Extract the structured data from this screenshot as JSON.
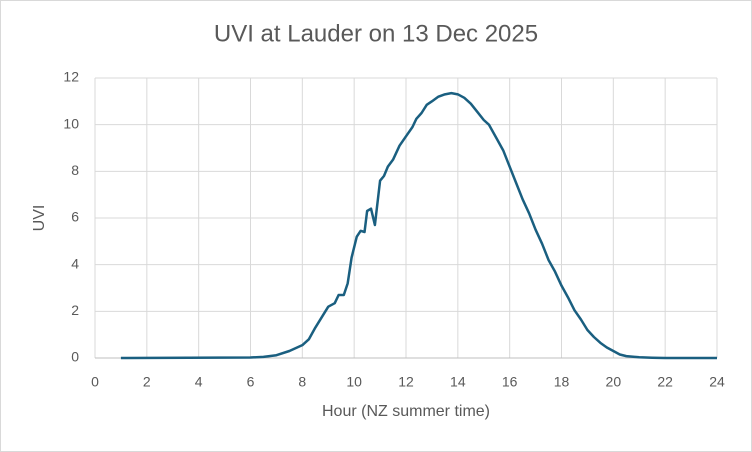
{
  "chart_data": {
    "type": "line",
    "title": "UVI at Lauder on 13 Dec 2025",
    "x_label": "Hour (NZ summer time)",
    "y_label": "UVI",
    "x": [
      1.0,
      6.0,
      6.5,
      7.0,
      7.5,
      8.0,
      8.25,
      8.5,
      8.75,
      9.0,
      9.25,
      9.4,
      9.6,
      9.75,
      9.9,
      10.1,
      10.25,
      10.4,
      10.5,
      10.65,
      10.8,
      11.0,
      11.15,
      11.3,
      11.5,
      11.75,
      12.0,
      12.25,
      12.4,
      12.6,
      12.8,
      13.0,
      13.25,
      13.5,
      13.75,
      14.0,
      14.25,
      14.5,
      14.75,
      15.0,
      15.2,
      15.5,
      15.75,
      16.0,
      16.25,
      16.5,
      16.75,
      17.0,
      17.25,
      17.5,
      17.75,
      18.0,
      18.25,
      18.5,
      18.75,
      19.0,
      19.25,
      19.5,
      19.75,
      20.0,
      20.25,
      20.5,
      21.0,
      21.5,
      22.0,
      24.0
    ],
    "series": [
      {
        "name": "UVI",
        "color": "#1a5f80",
        "values": [
          0,
          0.02,
          0.05,
          0.12,
          0.3,
          0.55,
          0.8,
          1.3,
          1.75,
          2.2,
          2.35,
          2.7,
          2.7,
          3.2,
          4.3,
          5.2,
          5.45,
          5.4,
          6.3,
          6.4,
          5.7,
          7.6,
          7.8,
          8.2,
          8.5,
          9.1,
          9.5,
          9.9,
          10.25,
          10.5,
          10.85,
          11.0,
          11.2,
          11.3,
          11.35,
          11.3,
          11.15,
          10.9,
          10.55,
          10.2,
          10.0,
          9.4,
          8.9,
          8.2,
          7.5,
          6.8,
          6.2,
          5.5,
          4.9,
          4.2,
          3.7,
          3.1,
          2.6,
          2.05,
          1.65,
          1.2,
          0.9,
          0.65,
          0.45,
          0.3,
          0.15,
          0.08,
          0.03,
          0.01,
          0,
          0
        ]
      }
    ],
    "xlim": [
      0,
      24
    ],
    "xticks": [
      0,
      2,
      4,
      6,
      8,
      10,
      12,
      14,
      16,
      18,
      20,
      22,
      24
    ],
    "ylim": [
      0,
      12
    ],
    "yticks": [
      0,
      2,
      4,
      6,
      8,
      10,
      12
    ],
    "grid": true
  }
}
